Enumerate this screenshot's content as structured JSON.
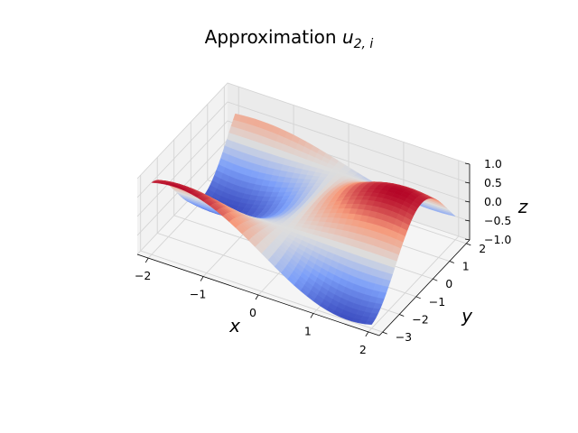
{
  "chart_data": {
    "type": "surface3d",
    "title_text": "Approximation ",
    "title_math": "u",
    "title_subscript": "2, i",
    "xlabel": "x",
    "ylabel": "y",
    "zlabel": "z",
    "xlim": [
      -2.2,
      2.2
    ],
    "ylim": [
      -3.2,
      2.2
    ],
    "zlim": [
      -1.0,
      1.0
    ],
    "x_ticks": [
      -2,
      -1,
      0,
      1,
      2
    ],
    "x_tick_labels": [
      "−2",
      "−1",
      "0",
      "1",
      "2"
    ],
    "y_ticks": [
      -3,
      -2,
      -1,
      0,
      1,
      2
    ],
    "y_tick_labels": [
      "−3",
      "−2",
      "−1",
      "0",
      "1",
      "2"
    ],
    "z_ticks": [
      -1.0,
      -0.5,
      0.0,
      0.5,
      1.0
    ],
    "z_tick_labels": [
      "−1.0",
      "−0.5",
      "0.0",
      "0.5",
      "1.0"
    ],
    "grid": true,
    "colormap": "coolwarm",
    "surface_x_range": [
      -2.0,
      2.0
    ],
    "surface_y_range": [
      -3.0,
      2.0
    ],
    "surface_function": "sin(x) * cos(y)"
  }
}
